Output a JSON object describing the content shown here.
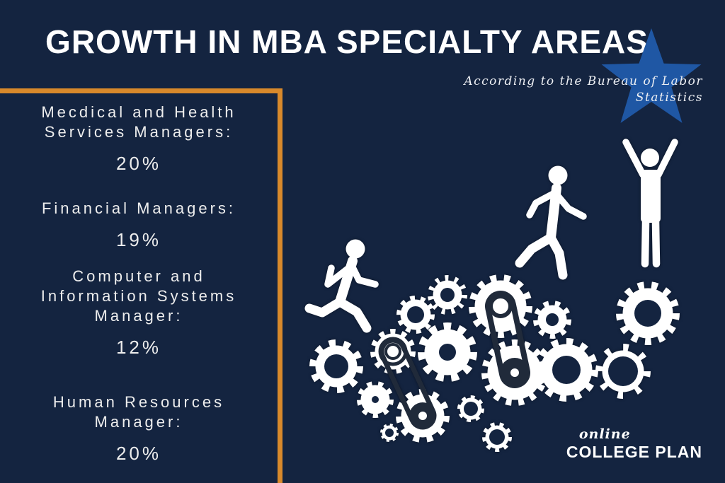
{
  "title": "GROWTH IN MBA SPECIALTY AREAS",
  "attribution": {
    "line1": "According to the Bureau of Labor",
    "line2": "Statistics"
  },
  "stats": [
    {
      "label": "Mecdical and Health Services Managers:",
      "value": "20%"
    },
    {
      "label": "Financial Managers:",
      "value": "19%"
    },
    {
      "label": "Computer and Information Systems Manager:",
      "value": "12%"
    },
    {
      "label": "Human Resources Manager:",
      "value": "20%"
    }
  ],
  "logo": {
    "script": "online",
    "name": "COLLEGE PLAN"
  },
  "colors": {
    "background": "#142440",
    "star_blue": "#1f57a4",
    "border_orange": "#d8892b",
    "text_light": "#ededed",
    "illustration_white": "#ffffff",
    "belt_dark": "#202a3a"
  },
  "chart_data": {
    "type": "table",
    "title": "Growth in MBA Specialty Areas",
    "source_note": "According to the Bureau of Labor Statistics",
    "categories": [
      "Mecdical and Health Services Managers",
      "Financial Managers",
      "Computer and Information Systems Manager",
      "Human Resources Manager"
    ],
    "values": [
      20,
      19,
      12,
      20
    ],
    "unit": "%"
  }
}
